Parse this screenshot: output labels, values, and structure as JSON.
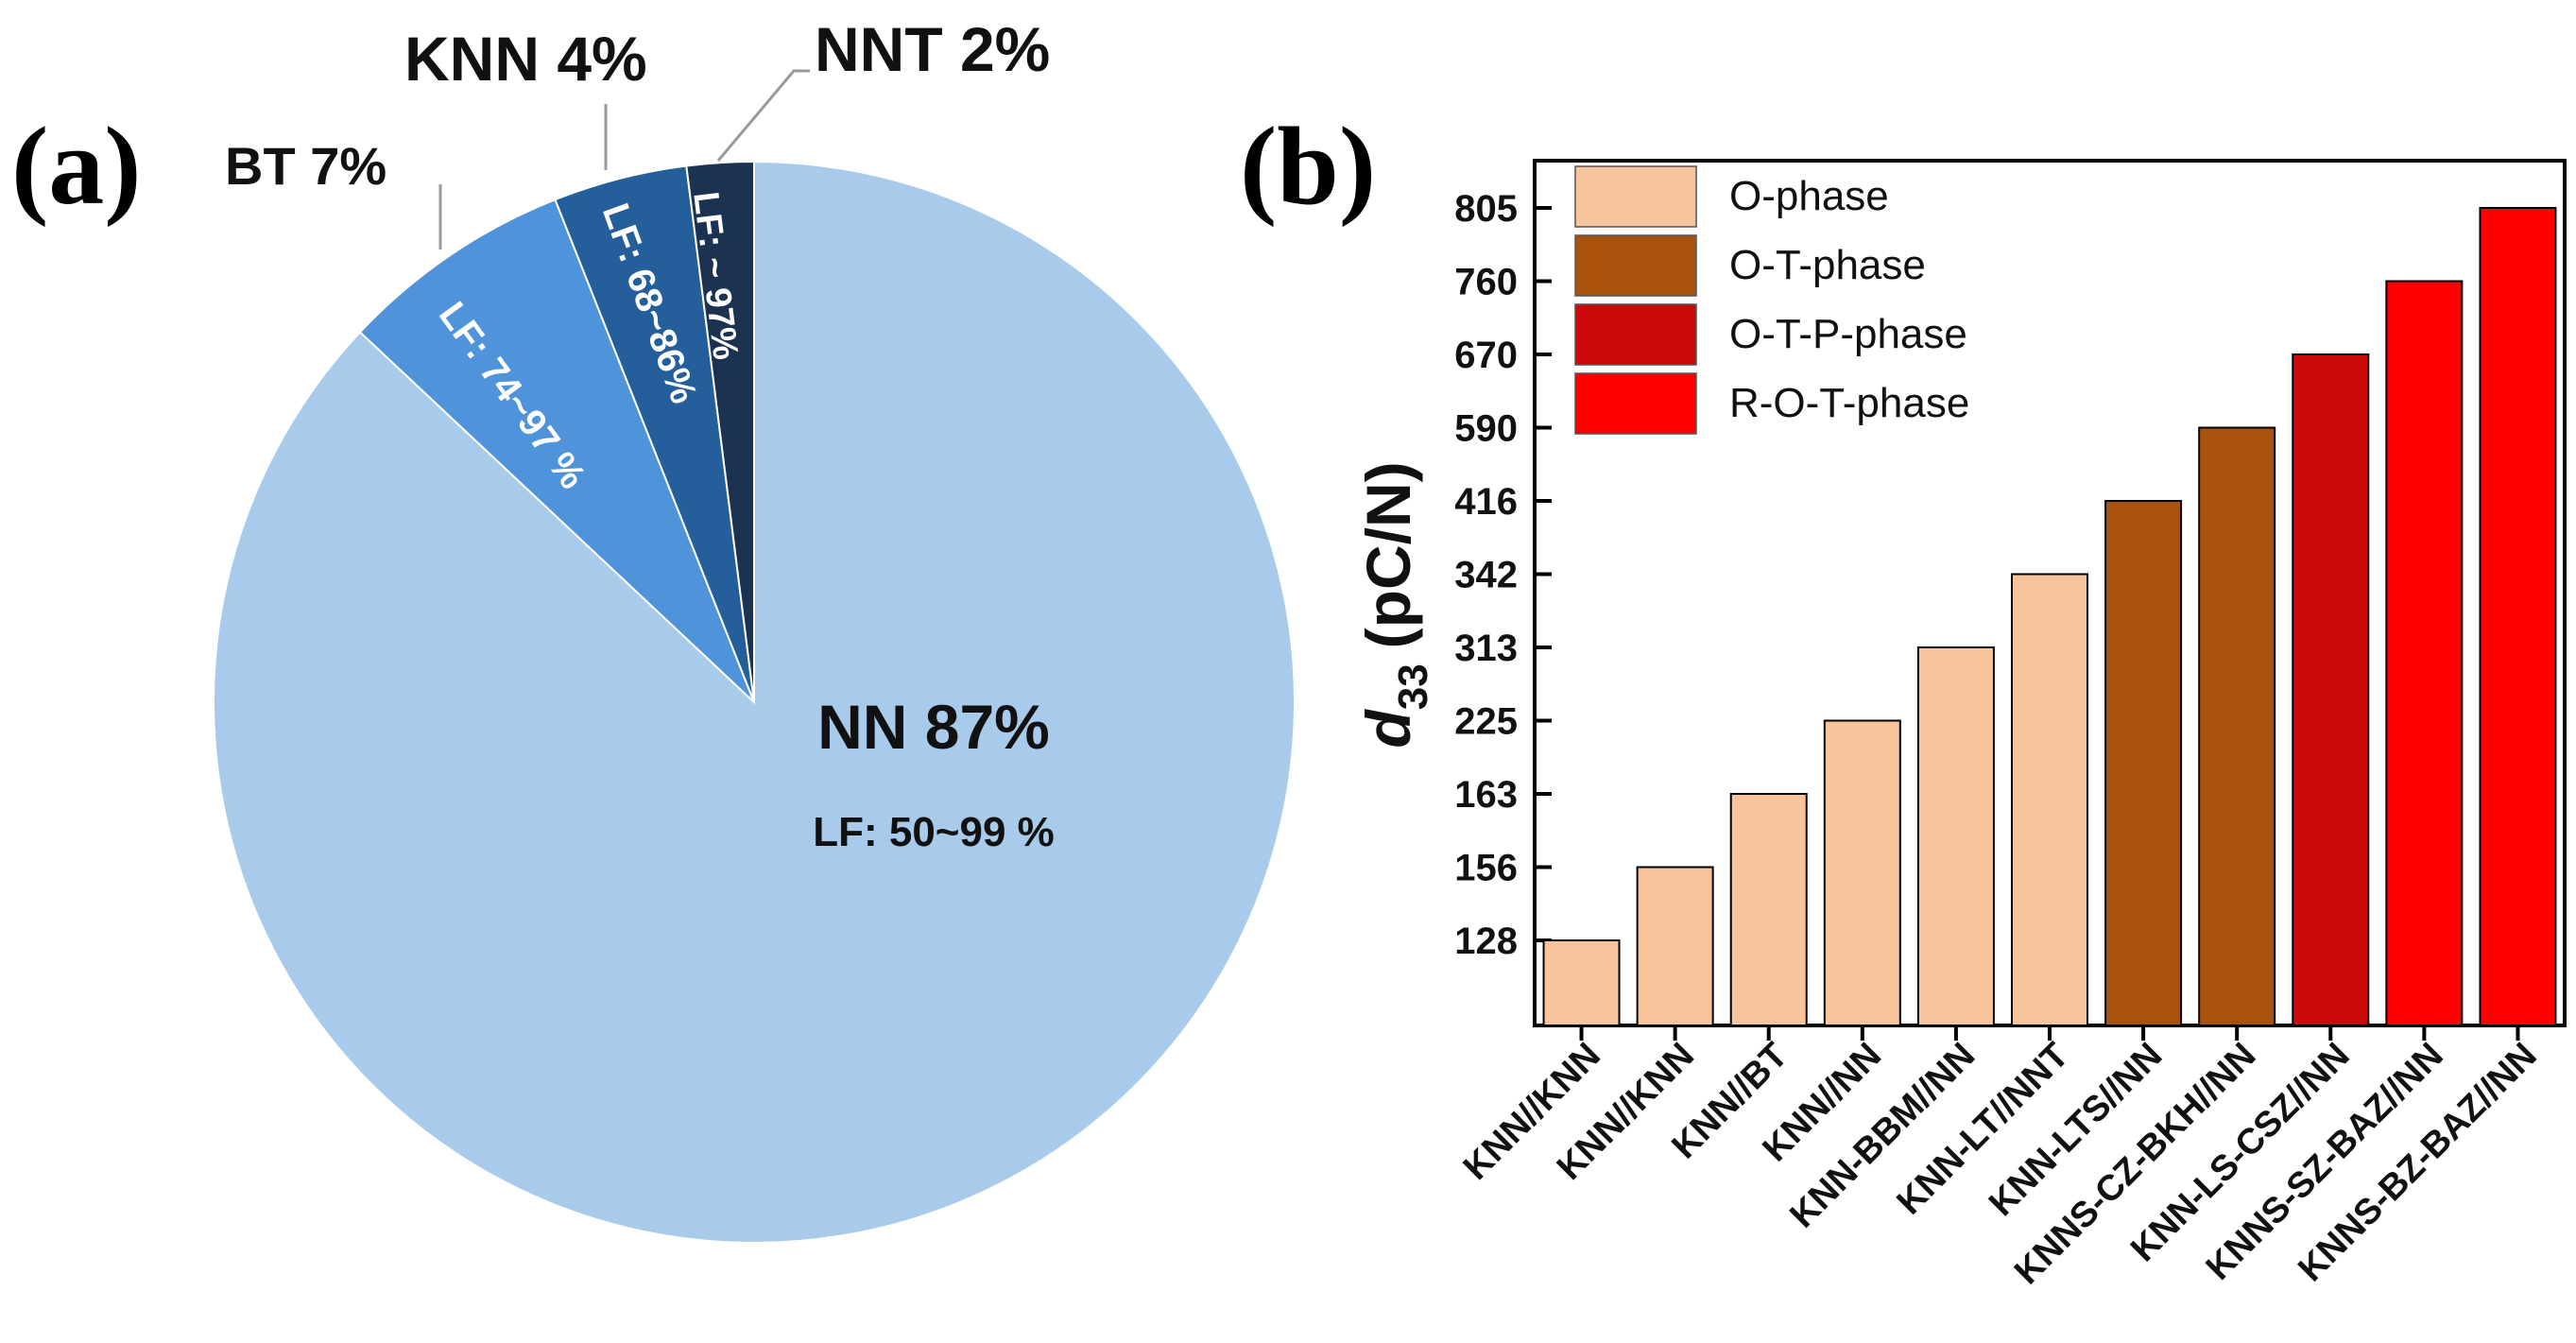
{
  "chart_data": [
    {
      "type": "pie",
      "panel_label": "(a)",
      "slices": [
        {
          "name": "NN",
          "percent": 87,
          "label": "NN 87%",
          "sublabel": "LF: 50~99 %",
          "color": "#A9CBEB"
        },
        {
          "name": "BT",
          "percent": 7,
          "label": "BT 7%",
          "sublabel": "LF: 74~97 %",
          "color": "#4F93DA"
        },
        {
          "name": "KNN",
          "percent": 4,
          "label": "KNN 4%",
          "sublabel": "LF: 68~86%",
          "color": "#245E9B"
        },
        {
          "name": "NNT",
          "percent": 2,
          "label": "NNT 2%",
          "sublabel": "LF: ~ 97%",
          "color": "#1B3250"
        }
      ]
    },
    {
      "type": "bar",
      "panel_label": "(b)",
      "ylabel_main": "d",
      "ylabel_sub": "33",
      "ylabel_unit": "(pC/N)",
      "categories": [
        "KNN//KNN",
        "KNN//KNN",
        "KNN//BT",
        "KNN//NN",
        "KNN-BBM//NN",
        "KNN-LT//NNT",
        "KNN-LTS//NN",
        "KNNS-CZ-BKH//NN",
        "KNN-LS-CSZ//NN",
        "KNNS-SZ-BAZ//NN",
        "KNNS-BZ-BAZ//NN"
      ],
      "values": [
        128,
        156,
        163,
        225,
        313,
        342,
        416,
        590,
        670,
        760,
        805
      ],
      "phases": [
        "O-phase",
        "O-phase",
        "O-phase",
        "O-phase",
        "O-phase",
        "O-phase",
        "O-T-phase",
        "O-T-phase",
        "O-T-P-phase",
        "R-O-T-phase",
        "R-O-T-phase"
      ],
      "yticks": [
        128,
        156,
        163,
        225,
        313,
        342,
        416,
        590,
        670,
        760,
        805
      ],
      "legend": [
        {
          "label": "O-phase",
          "color": "#F8C49C"
        },
        {
          "label": "O-T-phase",
          "color": "#A8520E"
        },
        {
          "label": "O-T-P-phase",
          "color": "#CC0808"
        },
        {
          "label": "R-O-T-phase",
          "color": "#FF0000"
        }
      ],
      "legend_position": "top-left"
    }
  ]
}
